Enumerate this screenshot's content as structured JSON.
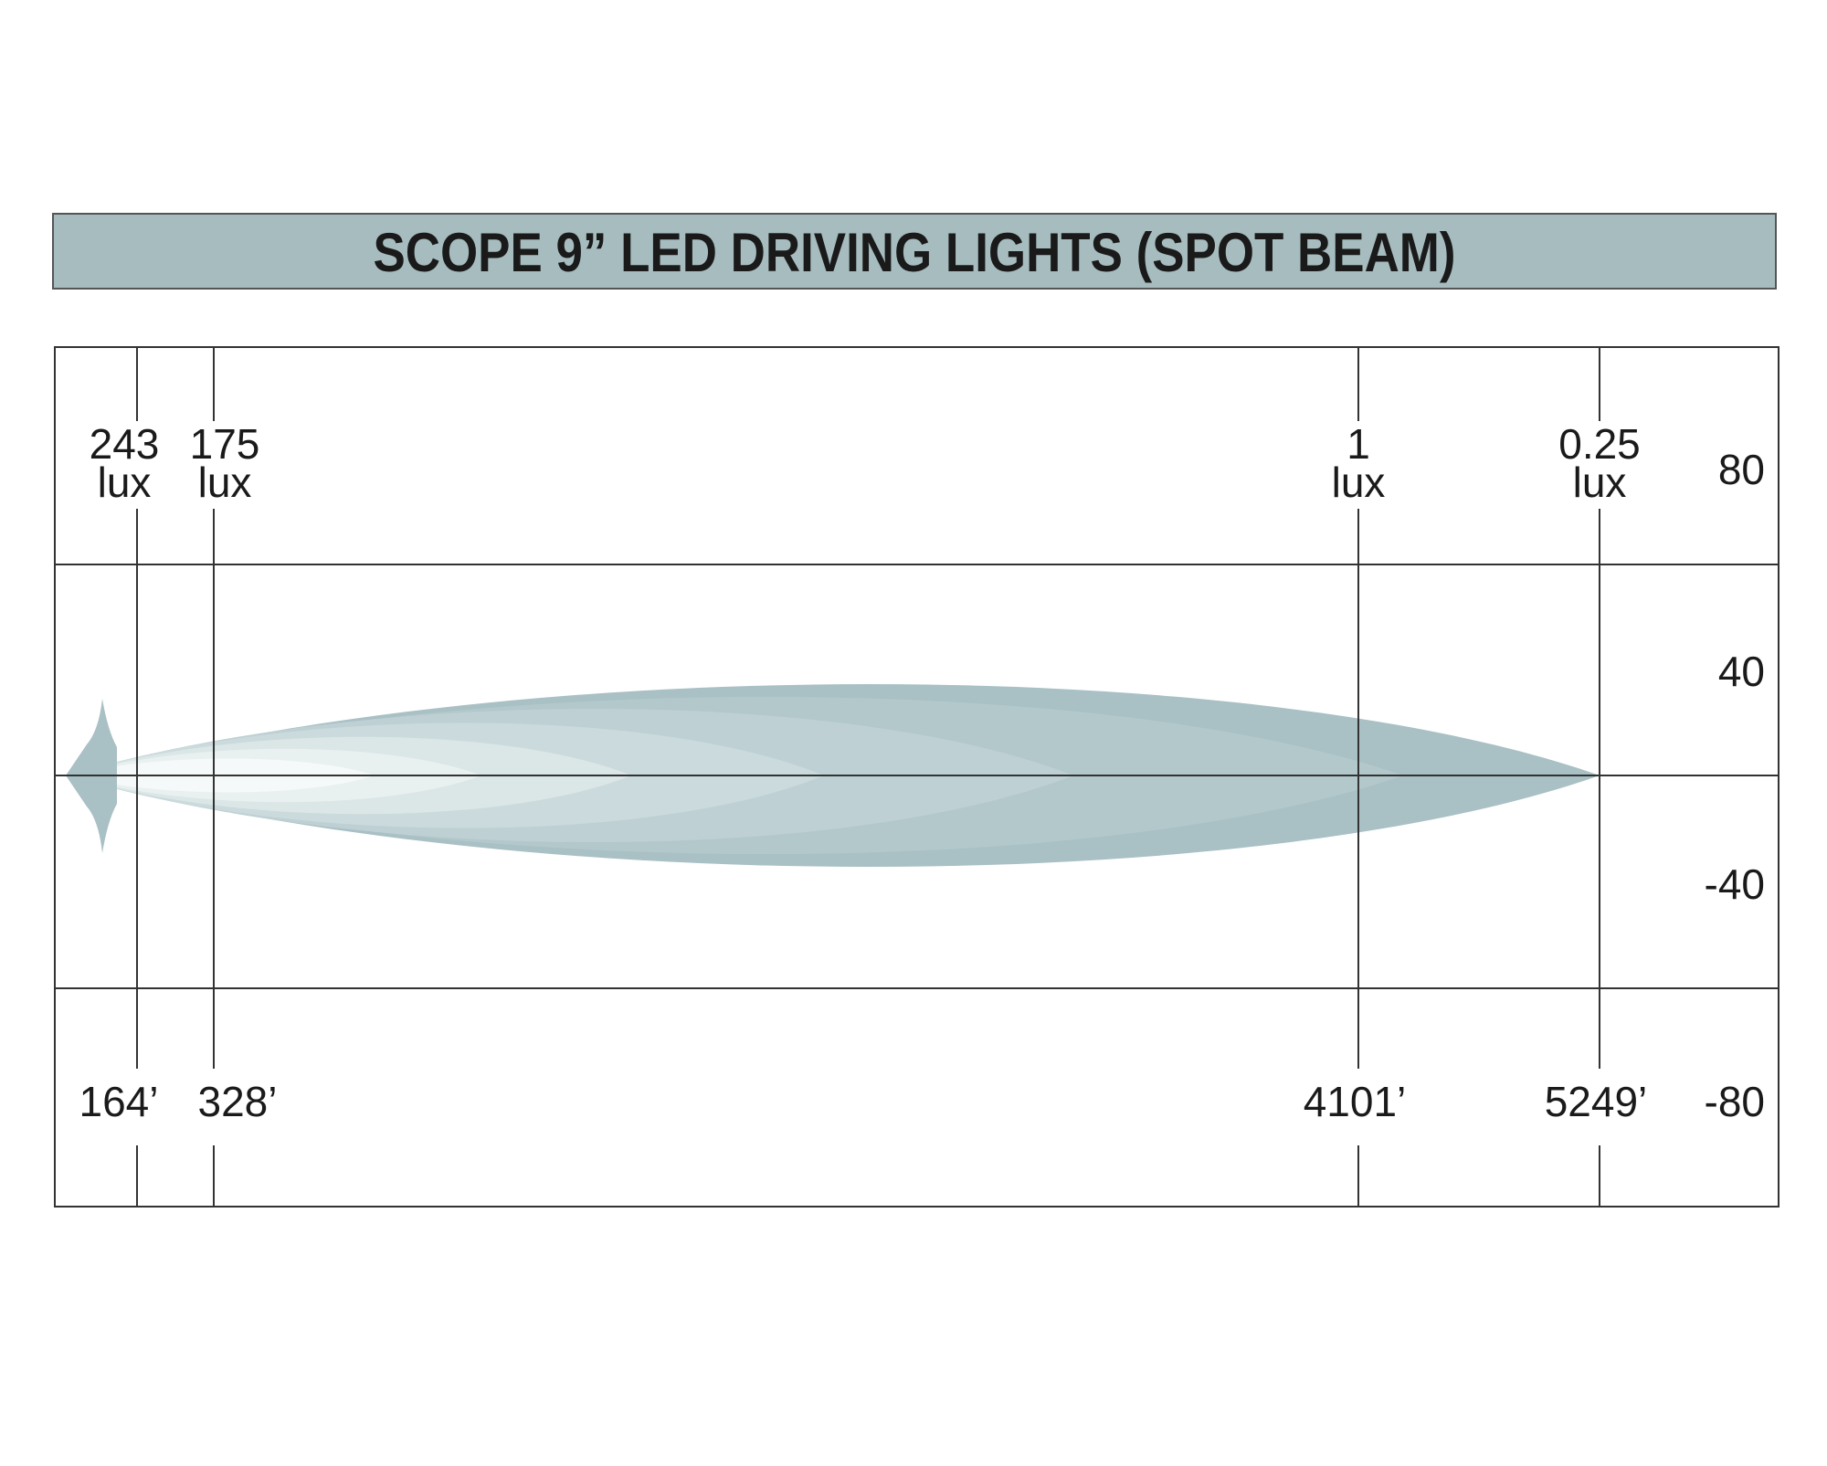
{
  "title": "SCOPE 9” LED DRIVING LIGHTS (SPOT BEAM)",
  "markers": [
    {
      "lux": "243",
      "unit": "lux",
      "distance": "164’"
    },
    {
      "lux": "175",
      "unit": "lux",
      "distance": "328’"
    },
    {
      "lux": "1",
      "unit": "lux",
      "distance": "4101’"
    },
    {
      "lux": "0.25",
      "unit": "lux",
      "distance": "5249’"
    }
  ],
  "y_labels": [
    "80",
    "40",
    "-40",
    "-80"
  ]
}
